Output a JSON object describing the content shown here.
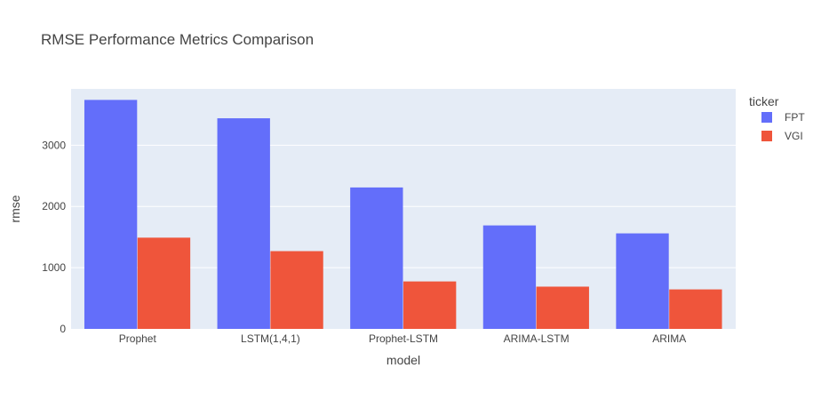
{
  "chart_data": {
    "type": "bar",
    "title": "RMSE Performance Metrics Comparison",
    "xlabel": "model",
    "ylabel": "rmse",
    "categories": [
      "Prophet",
      "LSTM(1,4,1)",
      "Prophet-LSTM",
      "ARIMA-LSTM",
      "ARIMA"
    ],
    "series": [
      {
        "name": "FPT",
        "values": [
          3740,
          3440,
          2310,
          1690,
          1560
        ],
        "color": "#636efa"
      },
      {
        "name": "VGI",
        "values": [
          1490,
          1270,
          775,
          690,
          645
        ],
        "color": "#ef553b"
      }
    ],
    "ylim": [
      0,
      3920
    ],
    "yticks": [
      {
        "value": 0,
        "label": "0"
      },
      {
        "value": 1000,
        "label": "1000"
      },
      {
        "value": 2000,
        "label": "2000"
      },
      {
        "value": 3000,
        "label": "3000"
      }
    ],
    "legend": {
      "title": "ticker",
      "placement": "right"
    },
    "plot_background": "#e5ecf6",
    "grid": true
  }
}
